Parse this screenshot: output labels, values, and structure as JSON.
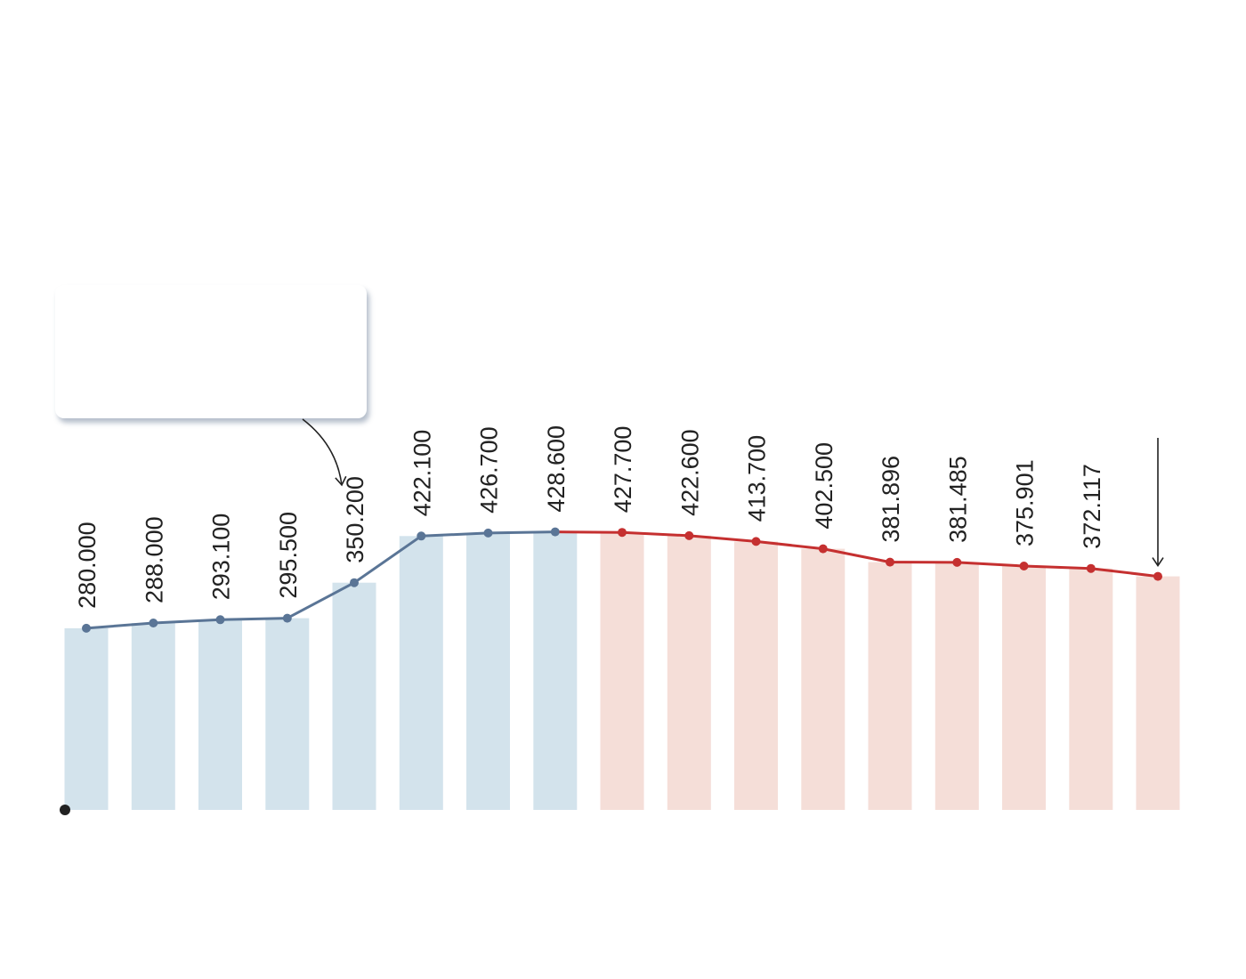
{
  "colors": {
    "actual_bar": "#d3e3ec",
    "actual_line": "#5a7596",
    "forecast_bar": "#f5ded8",
    "forecast_line": "#c53030",
    "text": "#222222"
  },
  "chart_data": {
    "type": "bar",
    "ylim": [
      0,
      600
    ],
    "grid": false,
    "values": [
      280.0,
      288.0,
      293.1,
      295.5,
      350.2,
      422.1,
      426.7,
      428.6,
      427.7,
      422.6,
      413.7,
      402.5,
      381.896,
      381.485,
      375.901,
      372.117,
      360.0
    ],
    "labels": [
      "280.000",
      "288.000",
      "293.100",
      "295.500",
      "350.200",
      "422.100",
      "426.700",
      "428.600",
      "427.700",
      "422.600",
      "413.700",
      "402.500",
      "381.896",
      "381.485",
      "375.901",
      "372.117",
      ""
    ],
    "segments": [
      {
        "role": "actual",
        "from_index": 0,
        "to_index": 7
      },
      {
        "role": "forecast",
        "from_index": 8,
        "to_index": 16
      }
    ],
    "line_overlay": true,
    "annotations": [
      {
        "type": "callout-arrow",
        "target_index": 4
      },
      {
        "type": "down-arrow",
        "target_index": 16
      }
    ]
  }
}
